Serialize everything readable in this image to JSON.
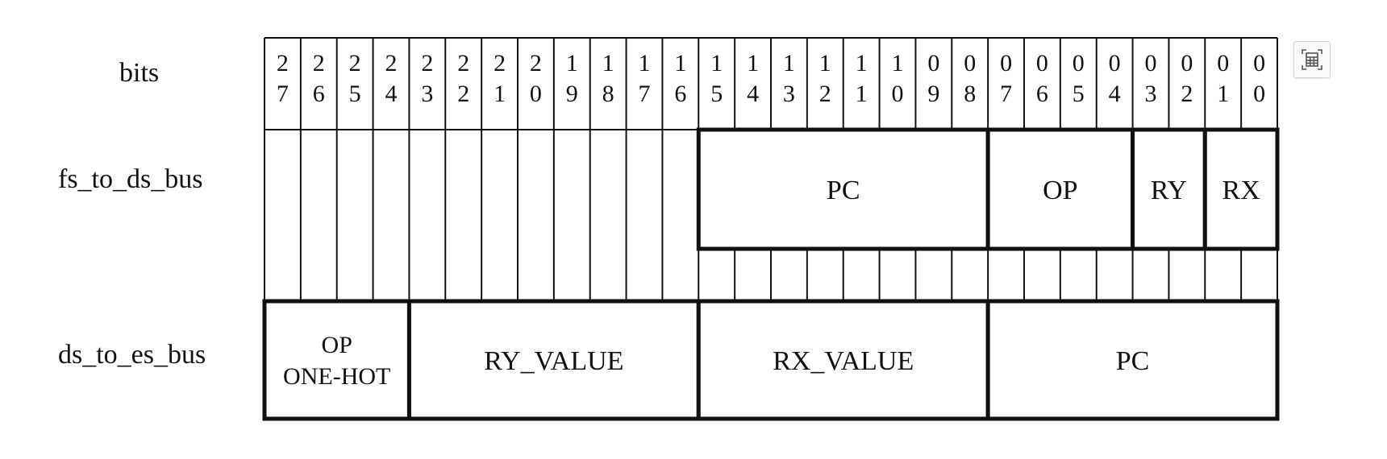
{
  "row_labels": {
    "bits": "bits",
    "fs_to_ds": "fs_to_ds_bus",
    "ds_to_es": "ds_to_es_bus"
  },
  "bit_numbers": [
    "27",
    "26",
    "25",
    "24",
    "23",
    "22",
    "21",
    "20",
    "19",
    "18",
    "17",
    "16",
    "15",
    "14",
    "13",
    "12",
    "11",
    "10",
    "09",
    "08",
    "07",
    "06",
    "05",
    "04",
    "03",
    "02",
    "01",
    "00"
  ],
  "fs_to_ds_fields": [
    {
      "name": "PC",
      "hi": 15,
      "lo": 8
    },
    {
      "name": "OP",
      "hi": 7,
      "lo": 4
    },
    {
      "name": "RY",
      "hi": 3,
      "lo": 2
    },
    {
      "name": "RX",
      "hi": 1,
      "lo": 0
    }
  ],
  "ds_to_es_fields": [
    {
      "name": [
        "OP",
        "ONE-HOT"
      ],
      "hi": 27,
      "lo": 24
    },
    {
      "name": [
        "RY_VALUE"
      ],
      "hi": 23,
      "lo": 16
    },
    {
      "name": [
        "RX_VALUE"
      ],
      "hi": 15,
      "lo": 8
    },
    {
      "name": [
        "PC"
      ],
      "hi": 7,
      "lo": 0
    }
  ],
  "toolbar": {
    "calculator_icon": "calculator-icon"
  },
  "colors": {
    "line": "#111111",
    "icon": "#555555"
  }
}
